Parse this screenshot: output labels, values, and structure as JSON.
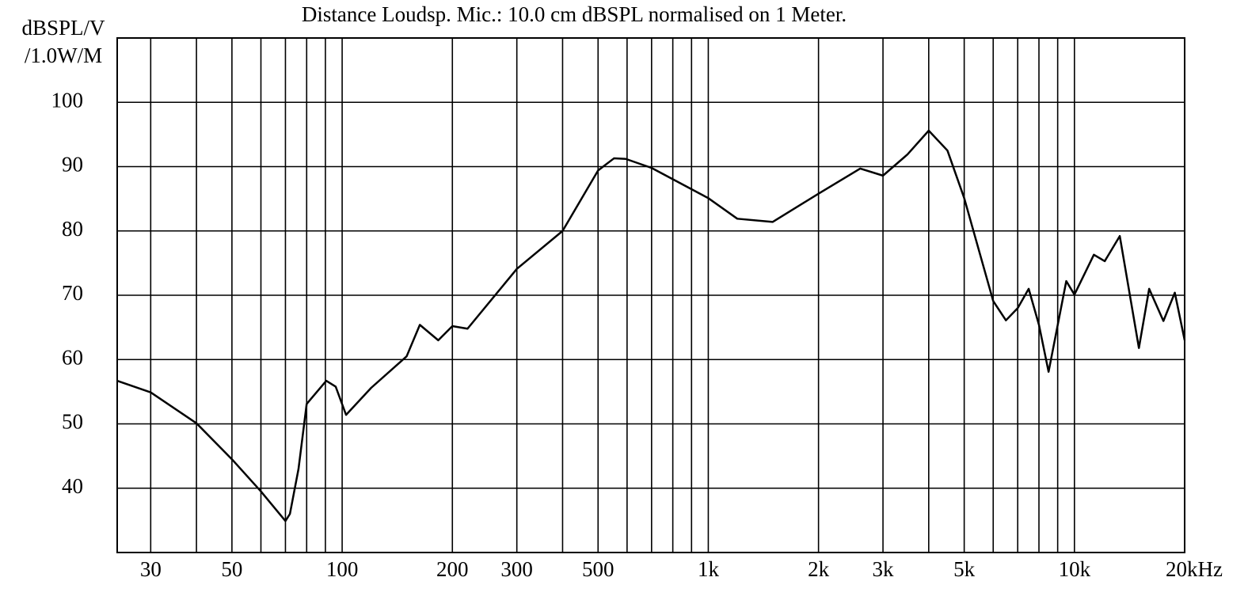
{
  "chart_data": {
    "type": "line",
    "title": "Distance Loudsp. Mic.: 10.0 cm dBSPL normalised on 1 Meter.",
    "y_label": [
      "dBSPL/V",
      "/1.0W/M"
    ],
    "x_scale": "log",
    "xlim": [
      24.3,
      20000
    ],
    "ylim": [
      30,
      110
    ],
    "yticks": [
      40,
      50,
      60,
      70,
      80,
      90,
      100
    ],
    "xticks": [
      30,
      50,
      100,
      200,
      300,
      500,
      {
        "value": 1000,
        "label": "1k"
      },
      {
        "value": 2000,
        "label": "2k"
      },
      {
        "value": 3000,
        "label": "3k"
      },
      {
        "value": 5000,
        "label": "5k"
      },
      {
        "value": 10000,
        "label": "10k"
      },
      {
        "value": 20000,
        "label": "20kHz"
      }
    ],
    "xgrid_minor": [
      40,
      60,
      70,
      80,
      90,
      400,
      600,
      700,
      800,
      900,
      4000,
      6000,
      7000,
      8000,
      9000
    ],
    "grid": true,
    "series": [
      {
        "color": "#000000",
        "x": [
          24.3,
          30,
          40,
          50,
          60,
          70,
          72,
          76,
          80,
          90.5,
          96,
          102.5,
          120,
          150,
          163,
          183,
          200,
          220,
          300,
          400,
          500,
          553,
          595,
          700,
          1000,
          1200,
          1500,
          2000,
          2600,
          3000,
          3500,
          4000,
          4500,
          5000,
          6000,
          6500,
          7000,
          7500,
          8000,
          8500,
          9500,
          10000,
          11300,
          12100,
          13300,
          15000,
          16000,
          17500,
          18800,
          20000
        ],
        "values": [
          56.7,
          54.9,
          50.1,
          44.5,
          39.5,
          34.9,
          36,
          43,
          53.1,
          56.7,
          55.8,
          51.4,
          55.6,
          60.5,
          65.4,
          63,
          65.2,
          64.8,
          74.1,
          80,
          89.4,
          91.3,
          91.2,
          89.8,
          85.1,
          81.9,
          81.4,
          85.8,
          89.7,
          88.6,
          91.9,
          95.6,
          92.5,
          85.1,
          69.1,
          66.1,
          68,
          71,
          65.4,
          58.1,
          72.2,
          70.1,
          76.3,
          75.3,
          79.2,
          61.8,
          71,
          66,
          70.4,
          63
        ]
      }
    ]
  }
}
